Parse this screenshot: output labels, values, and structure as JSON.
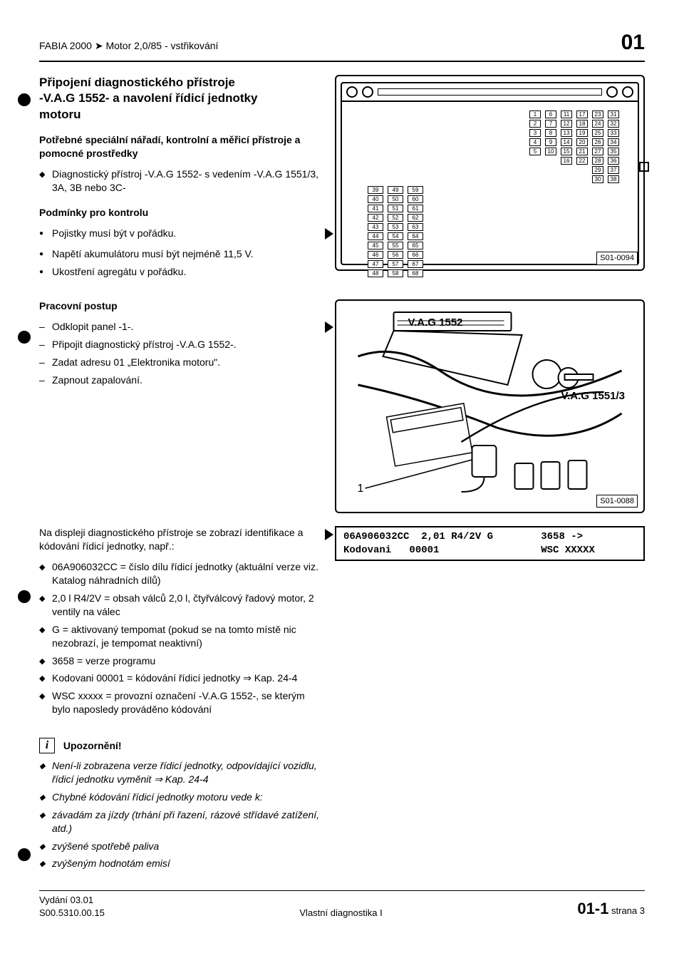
{
  "header": {
    "model_line": "FABIA 2000 ➤  Motor 2,0/85 - vstřikování",
    "chapter_num": "01"
  },
  "sec1": {
    "title_l1": "Připojení diagnostického přístroje",
    "title_l2": "-V.A.G 1552- a navolení řídicí jednotky",
    "title_l3": "motoru",
    "need_bold": "Potřebné speciální nářadí, kontrolní a měřicí přístroje a pomocné prostředky",
    "need_item": "Diagnostický přístroj -V.A.G 1552- s vedením -V.A.G 1551/3, 3A, 3B nebo 3C-",
    "cond_title": "Podmínky pro kontrolu",
    "cond1": "Pojistky musí být v pořádku.",
    "cond2": "Napětí akumulátoru musí být nejméně 11,5 V.",
    "cond3": "Ukostření agregátu v pořádku."
  },
  "fig1": {
    "label": "S01-0094",
    "fuse_cols_top": {
      "c1": [
        "1",
        "2",
        "3",
        "4",
        "5"
      ],
      "c2": [
        "6",
        "7",
        "8",
        "9",
        "10"
      ],
      "c3": [
        "11",
        "12",
        "13",
        "14",
        "15",
        "16"
      ],
      "c4": [
        "17",
        "18",
        "19",
        "20",
        "21",
        "22"
      ],
      "c5": [
        "23",
        "24",
        "25",
        "26",
        "27",
        "28"
      ],
      "c6": [
        "31",
        "32",
        "33",
        "34",
        "35",
        "36"
      ],
      "c7": [
        "29",
        "30"
      ],
      "c8": [
        "37",
        "38"
      ]
    },
    "fuse_cols_bot": {
      "c1": [
        "39",
        "40",
        "41",
        "42",
        "43",
        "44",
        "45",
        "46",
        "47",
        "48"
      ],
      "c2": [
        "49",
        "50",
        "51",
        "52",
        "53",
        "54",
        "55",
        "56",
        "57",
        "58"
      ],
      "c3": [
        "59",
        "60",
        "61",
        "62",
        "63",
        "64",
        "65",
        "66",
        "67",
        "68"
      ]
    }
  },
  "sec2": {
    "title": "Pracovní postup",
    "s1": "Odklopit panel -1-.",
    "s2": "Připojit diagnostický přístroj -V.A.G 1552-.",
    "s3": "Zadat adresu 01 „Elektronika motoru\".",
    "s4": "Zapnout zapalování."
  },
  "fig2": {
    "dev1": "V.A.G 1552",
    "dev2": "V.A.G 1551/3",
    "one": "1",
    "label": "S01-0088"
  },
  "sec3": {
    "intro": "Na displeji diagnostického přístroje se zobrazí identifikace a kódování řídicí jednotky, např.:",
    "d1": "06A906032CC = číslo dílu řídicí jednotky (aktuální verze viz. Katalog náhradních dílů)",
    "d2": "2,0 l R4/2V = obsah válců 2,0 l, čtyřválcový řadový motor, 2 ventily na válec",
    "d3": "G = aktivovaný tempomat (pokud se na tomto místě nic nezobrazí, je tempomat neaktivní)",
    "d4": "3658 = verze programu",
    "d5": "Kodovani 00001 = kódování řídicí jednotky ⇒ Kap. 24-4",
    "d6": "WSC xxxxx = provozní označení -V.A.G 1552-, se kterým bylo naposledy prováděno kódování"
  },
  "display": {
    "line1": "06A906032CC  2,01 R4/2V G        3658 ->",
    "line2": "Kodovani   00001                 WSC XXXXX"
  },
  "note": {
    "title": "Upozornění!",
    "n1": "Není-li zobrazena verze řídicí jednotky, odpovídající vozidlu, řídicí jednotku vyměnit ⇒ Kap. 24-4",
    "n2": "Chybné kódování řídicí jednotky motoru vede k:",
    "n3": "závadám za jízdy (trhání při řazení, rázové střídavé zatížení, atd.)",
    "n4": "zvýšené spotřebě paliva",
    "n5": "zvýšeným hodnotám emisí"
  },
  "footer": {
    "edition": "Vydání 03.01",
    "code": "S00.5310.00.15",
    "center": "Vlastní diagnostika I",
    "page_big": "01-1",
    "page_word": "strana",
    "page_num": "3"
  }
}
